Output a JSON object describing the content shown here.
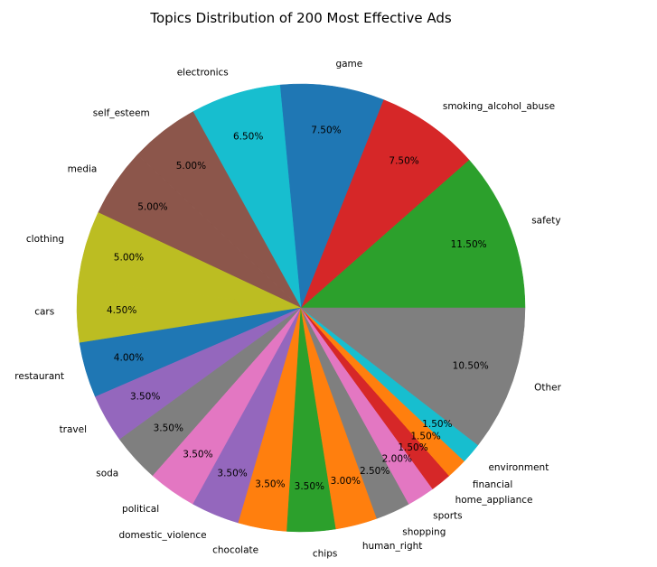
{
  "chart_data": {
    "type": "pie",
    "title": "Topics Distribution of 200 Most Effective Ads",
    "start_angle_deg": 0,
    "direction": "counterclockwise",
    "slices": [
      {
        "label": "safety",
        "value": 11.5,
        "pct_label": "11.50%",
        "color": "#2ca02c"
      },
      {
        "label": "smoking_alcohol_abuse",
        "value": 7.5,
        "pct_label": "7.50%",
        "color": "#d62728"
      },
      {
        "label": "game",
        "value": 7.5,
        "pct_label": "7.50%",
        "color": "#1f77b4"
      },
      {
        "label": "electronics",
        "value": 6.5,
        "pct_label": "6.50%",
        "color": "#17becf"
      },
      {
        "label": "self_esteem",
        "value": 5.0,
        "pct_label": "5.00%",
        "color": "#8c564b"
      },
      {
        "label": "media",
        "value": 5.0,
        "pct_label": "5.00%",
        "color": "#8c564b"
      },
      {
        "label": "clothing",
        "value": 5.0,
        "pct_label": "5.00%",
        "color": "#bcbd22"
      },
      {
        "label": "cars",
        "value": 4.5,
        "pct_label": "4.50%",
        "color": "#bcbd22"
      },
      {
        "label": "restaurant",
        "value": 4.0,
        "pct_label": "4.00%",
        "color": "#1f77b4"
      },
      {
        "label": "travel",
        "value": 3.5,
        "pct_label": "3.50%",
        "color": "#9467bd"
      },
      {
        "label": "soda",
        "value": 3.5,
        "pct_label": "3.50%",
        "color": "#7f7f7f"
      },
      {
        "label": "political",
        "value": 3.5,
        "pct_label": "3.50%",
        "color": "#e377c2"
      },
      {
        "label": "domestic_violence",
        "value": 3.5,
        "pct_label": "3.50%",
        "color": "#9467bd"
      },
      {
        "label": "chocolate",
        "value": 3.5,
        "pct_label": "3.50%",
        "color": "#ff7f0e"
      },
      {
        "label": "chips",
        "value": 3.5,
        "pct_label": "3.50%",
        "color": "#2ca02c"
      },
      {
        "label": "human_right",
        "value": 3.0,
        "pct_label": "3.00%",
        "color": "#ff7f0e"
      },
      {
        "label": "shopping",
        "value": 2.5,
        "pct_label": "2.50%",
        "color": "#7f7f7f"
      },
      {
        "label": "sports",
        "value": 2.0,
        "pct_label": "2.00%",
        "color": "#e377c2"
      },
      {
        "label": "home_appliance",
        "value": 1.5,
        "pct_label": "1.50%",
        "color": "#d62728"
      },
      {
        "label": "financial",
        "value": 1.5,
        "pct_label": "1.50%",
        "color": "#ff7f0e"
      },
      {
        "label": "environment",
        "value": 1.5,
        "pct_label": "1.50%",
        "color": "#17becf"
      },
      {
        "label": "Other",
        "value": 10.5,
        "pct_label": "10.50%",
        "color": "#7f7f7f"
      }
    ]
  }
}
